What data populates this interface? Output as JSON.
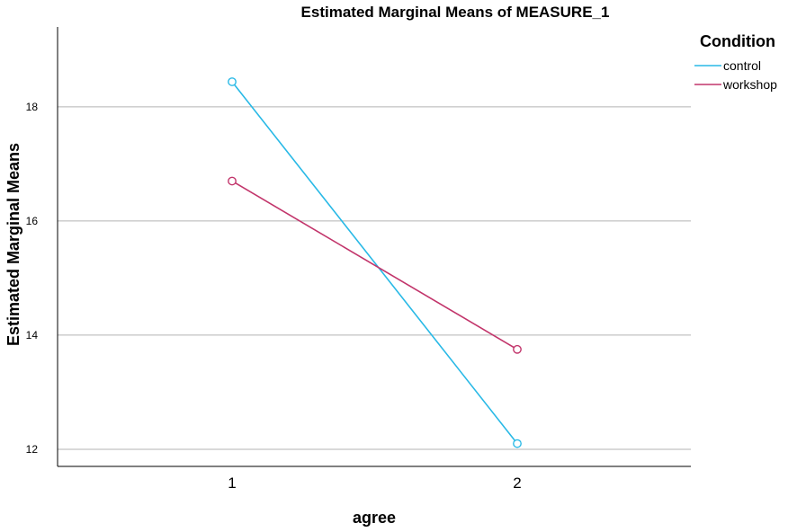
{
  "chart_data": {
    "type": "line",
    "title": "Estimated Marginal Means of MEASURE_1",
    "xlabel": "agree",
    "ylabel": "Estimated Marginal Means",
    "categories": [
      "1",
      "2"
    ],
    "ylim": [
      11.7,
      19.4
    ],
    "yticks": [
      12,
      14,
      16,
      18
    ],
    "grid": true,
    "legend_title": "Condition",
    "legend_position": "top-right",
    "marker": "circle-open",
    "series": [
      {
        "name": "control",
        "values": [
          18.44,
          12.1
        ],
        "color": "#29b9e6"
      },
      {
        "name": "workshop",
        "values": [
          16.7,
          13.75
        ],
        "color": "#c2356b"
      }
    ]
  }
}
